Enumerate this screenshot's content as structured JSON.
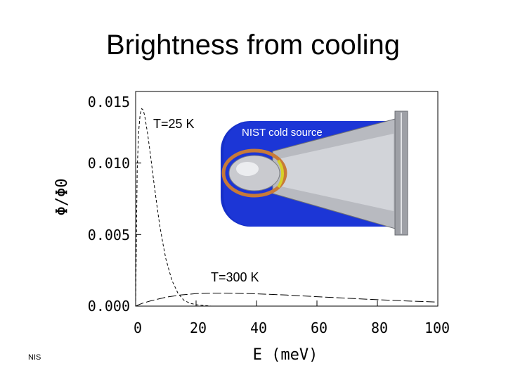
{
  "slide": {
    "title": "Brightness from cooling",
    "corner_text": "NIS"
  },
  "chart_data": {
    "type": "line",
    "title": "",
    "xlabel": "E (meV)",
    "ylabel": "Φ/Φ0",
    "xlim": [
      0,
      100
    ],
    "ylim": [
      0,
      0.015
    ],
    "xticks": [
      "0",
      "20",
      "40",
      "60",
      "80",
      "100"
    ],
    "yticks": [
      "0.000",
      "0.005",
      "0.010",
      "0.015"
    ],
    "grid": false,
    "series": [
      {
        "name": "T=25 K",
        "style": "dashed",
        "x": [
          0,
          0.5,
          1,
          1.5,
          2,
          2.5,
          3,
          4,
          5,
          6,
          7,
          8,
          9,
          10,
          12,
          14,
          16,
          18,
          20,
          25,
          30
        ],
        "y": [
          0.0,
          0.0095,
          0.0122,
          0.0134,
          0.0138,
          0.0137,
          0.0133,
          0.012,
          0.0104,
          0.0087,
          0.0071,
          0.0056,
          0.0044,
          0.0033,
          0.0018,
          0.0009,
          0.0004,
          0.0002,
          0.0001,
          0.0,
          0.0
        ]
      },
      {
        "name": "T=300 K",
        "style": "long-dash",
        "x": [
          0,
          2,
          5,
          10,
          15,
          20,
          25,
          30,
          40,
          50,
          60,
          70,
          80,
          90,
          100
        ],
        "y": [
          0.0,
          0.00018,
          0.00037,
          0.00062,
          0.00078,
          0.00087,
          0.00091,
          0.00091,
          0.00086,
          0.00077,
          0.00066,
          0.00055,
          0.00045,
          0.00036,
          0.00028
        ]
      }
    ],
    "annotations": [
      "T=25 K",
      "T=300 K"
    ],
    "inset": {
      "label": "NIST cold source"
    }
  }
}
